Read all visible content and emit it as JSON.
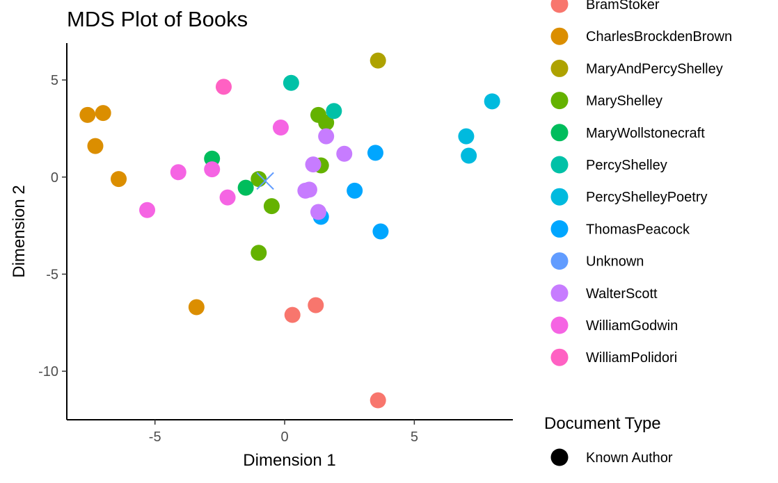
{
  "chart_data": {
    "type": "scatter",
    "title": "MDS Plot of Books",
    "xlabel": "Dimension 1",
    "ylabel": "Dimension 2",
    "xlim": [
      -8.4,
      8.8
    ],
    "ylim": [
      -12.5,
      6.9
    ],
    "x_ticks": [
      -5,
      0,
      5
    ],
    "x_tick_labels": [
      "-5",
      "0",
      "5"
    ],
    "y_ticks": [
      -10,
      -5,
      0,
      5
    ],
    "y_tick_labels": [
      "-10",
      "-5",
      "0",
      "5"
    ],
    "grid": false,
    "legend_position": "right",
    "legend_author_entries": [
      {
        "label": "BramStoker",
        "color": "#F8766D"
      },
      {
        "label": "CharlesBrockdenBrown",
        "color": "#DB8E00"
      },
      {
        "label": "MaryAndPercyShelley",
        "color": "#AEA200"
      },
      {
        "label": "MaryShelley",
        "color": "#64B200"
      },
      {
        "label": "MaryWollstonecraft",
        "color": "#00BD5C"
      },
      {
        "label": "PercyShelley",
        "color": "#00C1A7"
      },
      {
        "label": "PercyShelleyPoetry",
        "color": "#00BADE"
      },
      {
        "label": "ThomasPeacock",
        "color": "#00A6FF"
      },
      {
        "label": "Unknown",
        "color": "#619CFF"
      },
      {
        "label": "WalterScott",
        "color": "#C77CFF"
      },
      {
        "label": "WilliamGodwin",
        "color": "#F564E3"
      },
      {
        "label": "WilliamPolidori",
        "color": "#FF61C3"
      }
    ],
    "legend_type_title": "Document Type",
    "legend_type_entries": [
      {
        "label": "Known Author",
        "shape": "circle"
      }
    ],
    "series": [
      {
        "name": "BramStoker",
        "color": "#F8766D",
        "shape": "circle",
        "points": [
          [
            0.3,
            -7.1
          ],
          [
            1.2,
            -6.6
          ],
          [
            3.6,
            -11.5
          ]
        ]
      },
      {
        "name": "CharlesBrockdenBrown",
        "color": "#DB8E00",
        "shape": "circle",
        "points": [
          [
            -7.6,
            3.2
          ],
          [
            -7.0,
            3.3
          ],
          [
            -7.3,
            1.6
          ],
          [
            -6.4,
            -0.1
          ],
          [
            -3.4,
            -6.7
          ]
        ]
      },
      {
        "name": "MaryAndPercyShelley",
        "color": "#AEA200",
        "shape": "circle",
        "points": [
          [
            3.6,
            6.0
          ]
        ]
      },
      {
        "name": "MaryShelley",
        "color": "#64B200",
        "shape": "circle",
        "points": [
          [
            1.3,
            3.2
          ],
          [
            1.6,
            2.8
          ],
          [
            1.4,
            0.6
          ],
          [
            -1.0,
            -0.1
          ],
          [
            -0.5,
            -1.5
          ],
          [
            -1.0,
            -3.9
          ]
        ]
      },
      {
        "name": "MaryWollstonecraft",
        "color": "#00BD5C",
        "shape": "circle",
        "points": [
          [
            -2.8,
            0.95
          ],
          [
            -1.5,
            -0.55
          ]
        ]
      },
      {
        "name": "PercyShelley",
        "color": "#00C1A7",
        "shape": "circle",
        "points": [
          [
            0.25,
            4.85
          ],
          [
            1.9,
            3.4
          ]
        ]
      },
      {
        "name": "PercyShelleyPoetry",
        "color": "#00BADE",
        "shape": "circle",
        "points": [
          [
            8.0,
            3.9
          ],
          [
            7.0,
            2.1
          ],
          [
            7.1,
            1.1
          ]
        ]
      },
      {
        "name": "ThomasPeacock",
        "color": "#00A6FF",
        "shape": "circle",
        "points": [
          [
            3.5,
            1.25
          ],
          [
            2.7,
            -0.7
          ],
          [
            3.7,
            -2.8
          ],
          [
            1.4,
            -2.05
          ]
        ]
      },
      {
        "name": "Unknown",
        "color": "#619CFF",
        "shape": "x",
        "points": [
          [
            -0.75,
            -0.2
          ]
        ]
      },
      {
        "name": "WalterScott",
        "color": "#C77CFF",
        "shape": "circle",
        "points": [
          [
            1.6,
            2.1
          ],
          [
            2.3,
            1.2
          ],
          [
            1.1,
            0.65
          ],
          [
            0.8,
            -0.7
          ],
          [
            0.95,
            -0.65
          ],
          [
            1.3,
            -1.8
          ]
        ]
      },
      {
        "name": "WilliamGodwin",
        "color": "#F564E3",
        "shape": "circle",
        "points": [
          [
            -0.15,
            2.55
          ],
          [
            -4.1,
            0.25
          ],
          [
            -2.8,
            0.4
          ],
          [
            -2.2,
            -1.05
          ],
          [
            -5.3,
            -1.7
          ]
        ]
      },
      {
        "name": "WilliamPolidori",
        "color": "#FF61C3",
        "shape": "circle",
        "points": [
          [
            -2.35,
            4.65
          ]
        ]
      }
    ]
  }
}
